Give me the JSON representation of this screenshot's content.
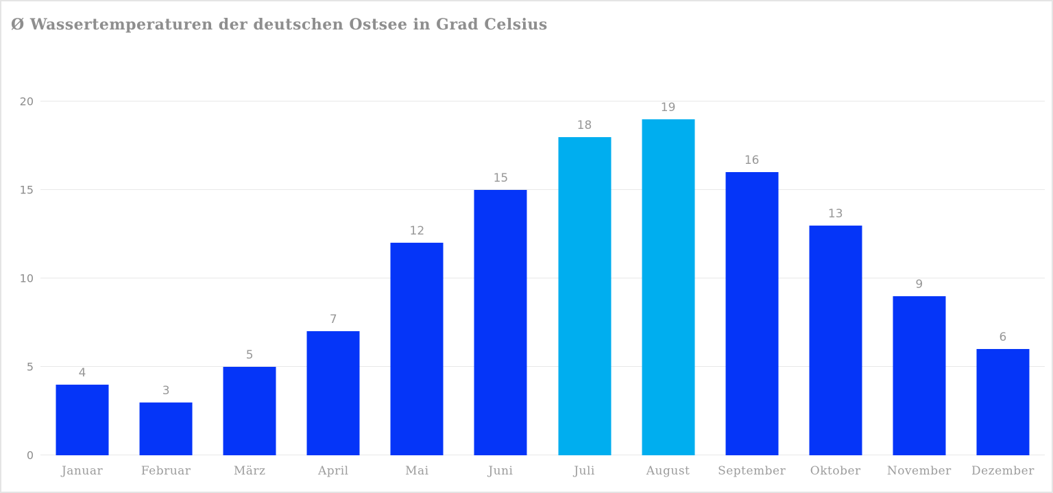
{
  "page": {
    "background": "#ffffff",
    "border_color": "#e4e4e4"
  },
  "chart_data": {
    "type": "bar",
    "title": "Ø Wassertemperaturen der deutschen Ostsee in Grad Celsius",
    "xlabel": "",
    "ylabel": "",
    "categories": [
      "Januar",
      "Februar",
      "März",
      "April",
      "Mai",
      "Juni",
      "Juli",
      "August",
      "September",
      "Oktober",
      "November",
      "Dezember"
    ],
    "values": [
      4,
      3,
      5,
      7,
      12,
      15,
      18,
      19,
      16,
      13,
      9,
      6
    ],
    "highlighted_categories": [
      "Juli",
      "August"
    ],
    "ylim": [
      0,
      20
    ],
    "yticks": [
      0,
      5,
      10,
      15,
      20
    ],
    "grid": "horizontal",
    "legend_position": "none",
    "colors": {
      "bar_default": "#0535f8",
      "bar_highlight": "#00aeef",
      "gridline": "#e8e8e8",
      "axis_text": "#8c8c8c",
      "value_label": "#979797",
      "category_label": "#9c9c9c",
      "title_text": "#8e8e8e"
    }
  }
}
